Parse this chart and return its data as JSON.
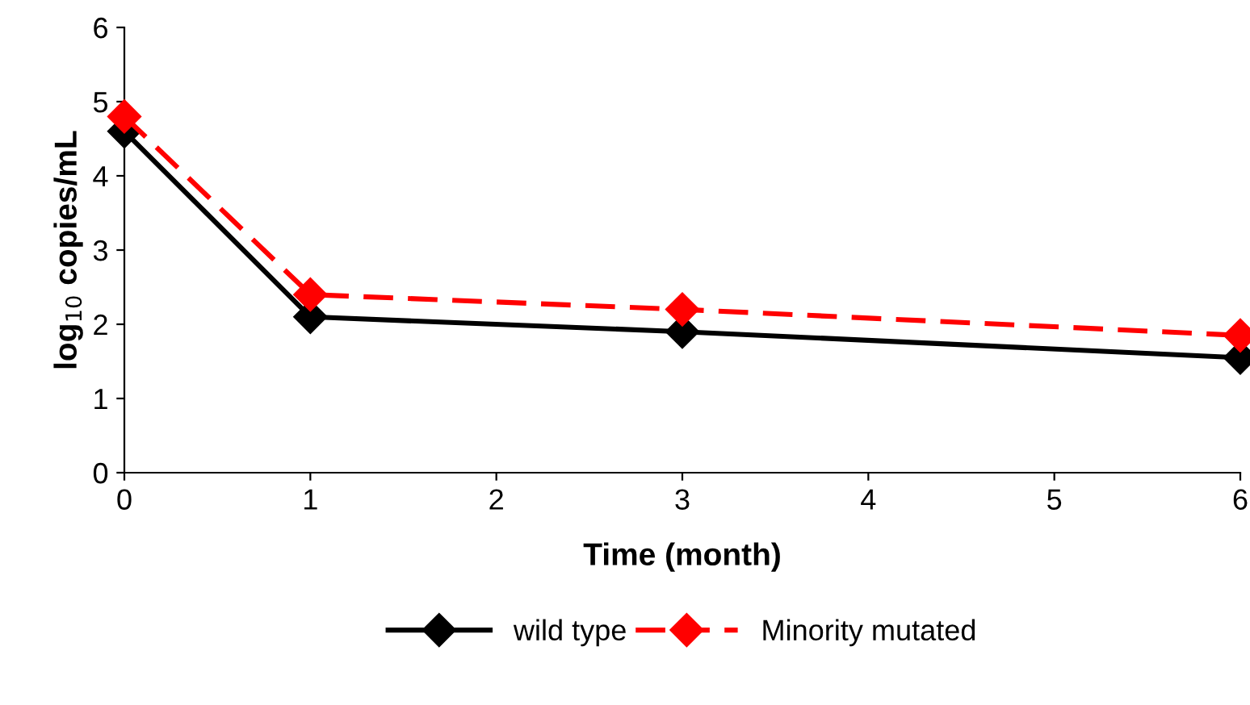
{
  "chart_data": {
    "type": "line",
    "xlabel": "Time (month)",
    "ylabel": "log$_{10}$ copies/mL",
    "xlim": [
      0,
      6
    ],
    "xticks": [
      0,
      1,
      2,
      3,
      4,
      5,
      6
    ],
    "ylim": [
      0,
      6
    ],
    "yticks": [
      0,
      1,
      2,
      3,
      4,
      5,
      6
    ],
    "grid": false,
    "legend": "bottom",
    "marker": "diamond",
    "series": [
      {
        "name": "wild type",
        "color": "#000000",
        "line_style": "solid",
        "x": [
          0,
          1,
          3,
          6
        ],
        "values": [
          4.6,
          2.1,
          1.9,
          1.55
        ]
      },
      {
        "name": "Minority mutated",
        "color": "#ff0000",
        "line_style": "dashed",
        "x": [
          0,
          1,
          3,
          6
        ],
        "values": [
          4.8,
          2.4,
          2.2,
          1.85
        ]
      }
    ]
  }
}
